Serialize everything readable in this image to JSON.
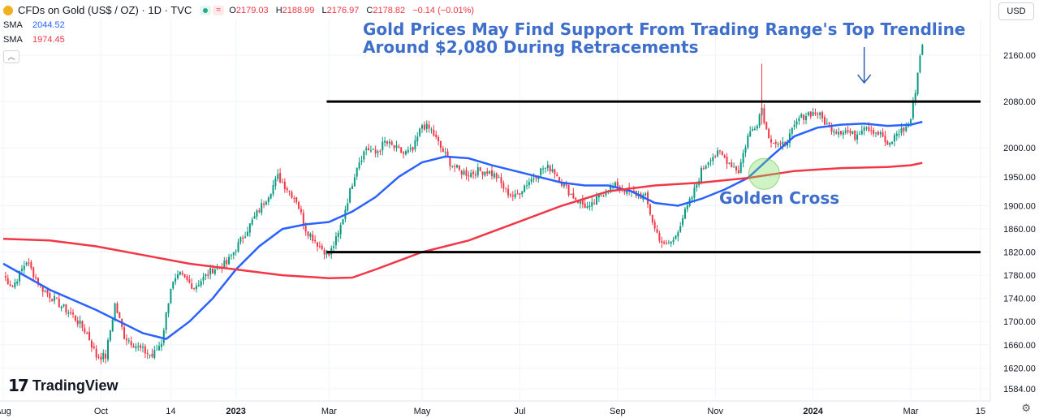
{
  "header": {
    "symbol_title": "CFDs on Gold (US$ / OZ) · 1D · TVC",
    "ohlc": [
      {
        "k": "O",
        "v": "2179.03"
      },
      {
        "k": "H",
        "v": "2188.99"
      },
      {
        "k": "L",
        "v": "2176.97"
      },
      {
        "k": "C",
        "v": "2178.82"
      }
    ],
    "change": "−0.14 (−0.01%)",
    "sma_rows": [
      {
        "label": "SMA",
        "value": "2044.52",
        "color": "#2962ff"
      },
      {
        "label": "SMA",
        "value": "1974.45",
        "color": "#f23645"
      }
    ],
    "currency": "USD",
    "logo_text": "TradingView"
  },
  "chart_data": {
    "type": "candlestick",
    "title": "Gold Prices May Find Support From Trading Range's Top Trendline\nAround $2,080 During Retracements",
    "annotation": "Golden Cross",
    "y_ticks": [
      2160,
      2080,
      2000,
      1950,
      1900,
      1860,
      1820,
      1780,
      1740,
      1700,
      1660,
      1620,
      1584
    ],
    "x_labels": [
      "Aug",
      "Oct",
      "14",
      "2023",
      "Mar",
      "May",
      "Jul",
      "Sep",
      "Nov",
      "2024",
      "Mar",
      "15"
    ],
    "x_label_index": [
      0,
      42,
      72,
      100,
      140,
      180,
      222,
      264,
      306,
      348,
      390,
      420
    ],
    "total_days": 430,
    "last_index": 395,
    "trendlines": [
      {
        "from_index": 139,
        "to_index": 420,
        "price": 2080
      },
      {
        "from_index": 139,
        "to_index": 420,
        "price": 1820
      }
    ],
    "price_anchors": [
      [
        0,
        1780
      ],
      [
        4,
        1760
      ],
      [
        10,
        1805
      ],
      [
        16,
        1760
      ],
      [
        24,
        1730
      ],
      [
        30,
        1710
      ],
      [
        36,
        1680
      ],
      [
        40,
        1640
      ],
      [
        44,
        1640
      ],
      [
        48,
        1730
      ],
      [
        52,
        1675
      ],
      [
        58,
        1655
      ],
      [
        64,
        1640
      ],
      [
        68,
        1665
      ],
      [
        72,
        1760
      ],
      [
        76,
        1780
      ],
      [
        82,
        1760
      ],
      [
        90,
        1790
      ],
      [
        96,
        1800
      ],
      [
        102,
        1840
      ],
      [
        108,
        1880
      ],
      [
        114,
        1920
      ],
      [
        118,
        1950
      ],
      [
        122,
        1930
      ],
      [
        126,
        1910
      ],
      [
        130,
        1860
      ],
      [
        136,
        1830
      ],
      [
        140,
        1815
      ],
      [
        144,
        1850
      ],
      [
        148,
        1910
      ],
      [
        152,
        1970
      ],
      [
        156,
        2000
      ],
      [
        160,
        1990
      ],
      [
        164,
        2010
      ],
      [
        168,
        2000
      ],
      [
        172,
        1990
      ],
      [
        176,
        1995
      ],
      [
        180,
        2040
      ],
      [
        184,
        2030
      ],
      [
        188,
        2000
      ],
      [
        192,
        1975
      ],
      [
        196,
        1960
      ],
      [
        200,
        1955
      ],
      [
        204,
        1960
      ],
      [
        208,
        1960
      ],
      [
        212,
        1950
      ],
      [
        216,
        1925
      ],
      [
        220,
        1915
      ],
      [
        224,
        1935
      ],
      [
        228,
        1950
      ],
      [
        232,
        1965
      ],
      [
        236,
        1965
      ],
      [
        240,
        1940
      ],
      [
        244,
        1920
      ],
      [
        248,
        1905
      ],
      [
        252,
        1895
      ],
      [
        256,
        1915
      ],
      [
        260,
        1930
      ],
      [
        264,
        1935
      ],
      [
        268,
        1925
      ],
      [
        272,
        1920
      ],
      [
        276,
        1915
      ],
      [
        280,
        1860
      ],
      [
        284,
        1830
      ],
      [
        288,
        1840
      ],
      [
        292,
        1880
      ],
      [
        296,
        1915
      ],
      [
        300,
        1960
      ],
      [
        304,
        1985
      ],
      [
        308,
        1990
      ],
      [
        312,
        1975
      ],
      [
        316,
        1960
      ],
      [
        320,
        2020
      ],
      [
        324,
        2045
      ],
      [
        326,
        2070
      ],
      [
        328,
        2030
      ],
      [
        330,
        2015
      ],
      [
        334,
        2000
      ],
      [
        338,
        2020
      ],
      [
        342,
        2050
      ],
      [
        346,
        2060
      ],
      [
        350,
        2060
      ],
      [
        354,
        2040
      ],
      [
        358,
        2030
      ],
      [
        362,
        2030
      ],
      [
        366,
        2020
      ],
      [
        370,
        2040
      ],
      [
        374,
        2030
      ],
      [
        378,
        2020
      ],
      [
        380,
        2000
      ],
      [
        384,
        2025
      ],
      [
        388,
        2035
      ],
      [
        390,
        2050
      ],
      [
        392,
        2100
      ],
      [
        394,
        2160
      ],
      [
        395,
        2178
      ]
    ],
    "series": [
      {
        "name": "SMA",
        "color": "#2962ff",
        "points": [
          [
            0,
            1800
          ],
          [
            20,
            1755
          ],
          [
            40,
            1720
          ],
          [
            60,
            1680
          ],
          [
            70,
            1670
          ],
          [
            80,
            1700
          ],
          [
            90,
            1740
          ],
          [
            100,
            1790
          ],
          [
            110,
            1830
          ],
          [
            120,
            1860
          ],
          [
            130,
            1868
          ],
          [
            140,
            1872
          ],
          [
            150,
            1890
          ],
          [
            160,
            1915
          ],
          [
            170,
            1950
          ],
          [
            180,
            1975
          ],
          [
            190,
            1985
          ],
          [
            200,
            1982
          ],
          [
            210,
            1970
          ],
          [
            220,
            1960
          ],
          [
            230,
            1950
          ],
          [
            240,
            1940
          ],
          [
            250,
            1935
          ],
          [
            260,
            1935
          ],
          [
            270,
            1925
          ],
          [
            280,
            1905
          ],
          [
            290,
            1900
          ],
          [
            300,
            1912
          ],
          [
            310,
            1928
          ],
          [
            320,
            1948
          ],
          [
            330,
            1985
          ],
          [
            340,
            2020
          ],
          [
            350,
            2035
          ],
          [
            360,
            2040
          ],
          [
            370,
            2042
          ],
          [
            380,
            2038
          ],
          [
            390,
            2040
          ],
          [
            395,
            2045
          ]
        ]
      },
      {
        "name": "SMA",
        "color": "#f23645",
        "points": [
          [
            0,
            1843
          ],
          [
            20,
            1840
          ],
          [
            40,
            1830
          ],
          [
            60,
            1815
          ],
          [
            80,
            1800
          ],
          [
            100,
            1790
          ],
          [
            120,
            1780
          ],
          [
            140,
            1775
          ],
          [
            150,
            1776
          ],
          [
            160,
            1790
          ],
          [
            170,
            1805
          ],
          [
            180,
            1820
          ],
          [
            200,
            1840
          ],
          [
            220,
            1870
          ],
          [
            240,
            1900
          ],
          [
            260,
            1925
          ],
          [
            280,
            1935
          ],
          [
            300,
            1940
          ],
          [
            320,
            1948
          ],
          [
            340,
            1960
          ],
          [
            360,
            1965
          ],
          [
            380,
            1967
          ],
          [
            390,
            1970
          ],
          [
            395,
            1974
          ]
        ]
      }
    ],
    "y_range": [
      1570,
      2210
    ]
  }
}
